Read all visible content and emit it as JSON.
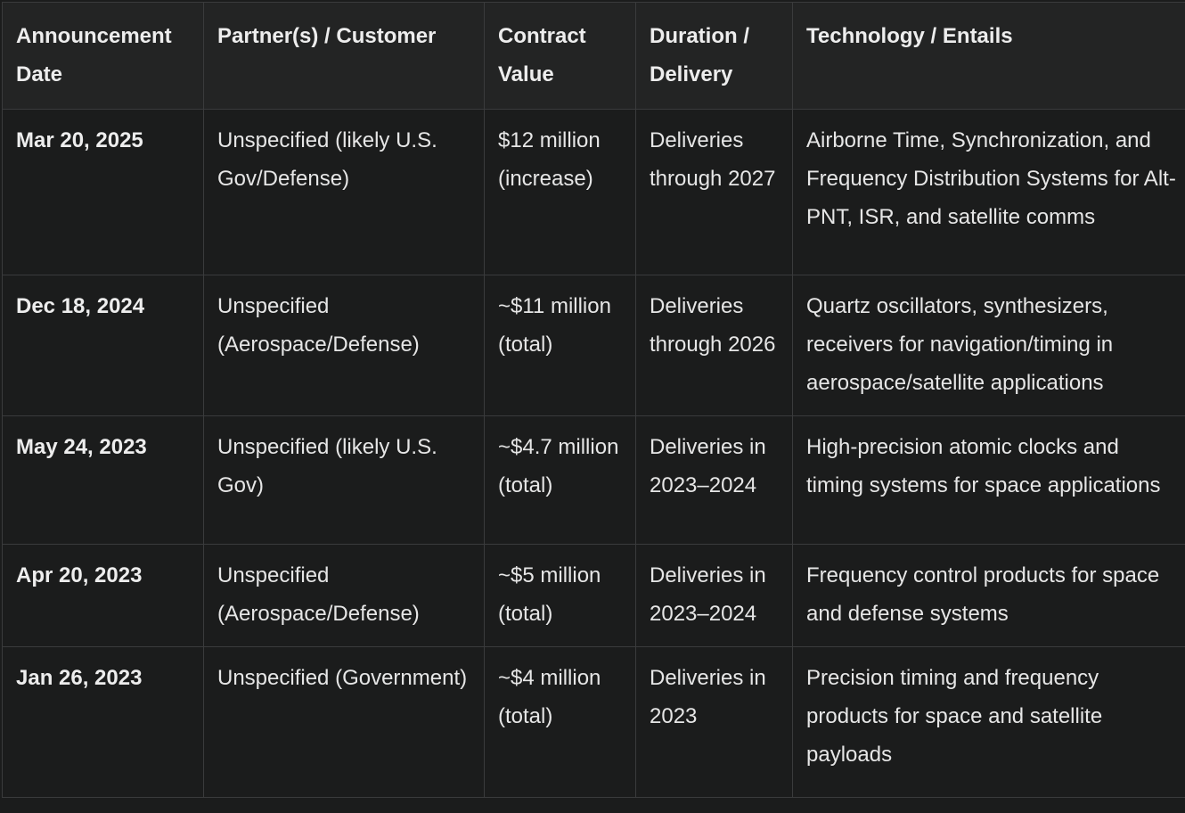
{
  "table": {
    "headers": [
      "Announcement Date",
      "Partner(s) / Customer",
      "Contract Value",
      "Duration / Delivery",
      "Technology / Entails"
    ],
    "rows": [
      {
        "date": "Mar 20, 2025",
        "partner": "Unspecified (likely U.S. Gov/Defense)",
        "value": "$12 million (increase)",
        "duration": "Deliveries through 2027",
        "technology": "Airborne Time, Synchronization, and Frequency Distribution Systems for Alt-PNT, ISR, and satellite comms"
      },
      {
        "date": "Dec 18, 2024",
        "partner": "Unspecified (Aerospace/Defense)",
        "value": "~$11 million (total)",
        "duration": "Deliveries through 2026",
        "technology": "Quartz oscillators, synthesizers, receivers for navigation/timing in aerospace/satellite applications"
      },
      {
        "date": "May 24, 2023",
        "partner": "Unspecified (likely U.S. Gov)",
        "value": "~$4.7 million (total)",
        "duration": "Deliveries in 2023–2024",
        "technology": "High-precision atomic clocks and timing systems for space applications"
      },
      {
        "date": "Apr 20, 2023",
        "partner": "Unspecified (Aerospace/Defense)",
        "value": "~$5 million (total)",
        "duration": "Deliveries in 2023–2024",
        "technology": "Frequency control products for space and defense systems"
      },
      {
        "date": "Jan 26, 2023",
        "partner": "Unspecified (Government)",
        "value": "~$4 million (total)",
        "duration": "Deliveries in 2023",
        "technology": "Precision timing and frequency products for space and satellite payloads"
      }
    ]
  }
}
